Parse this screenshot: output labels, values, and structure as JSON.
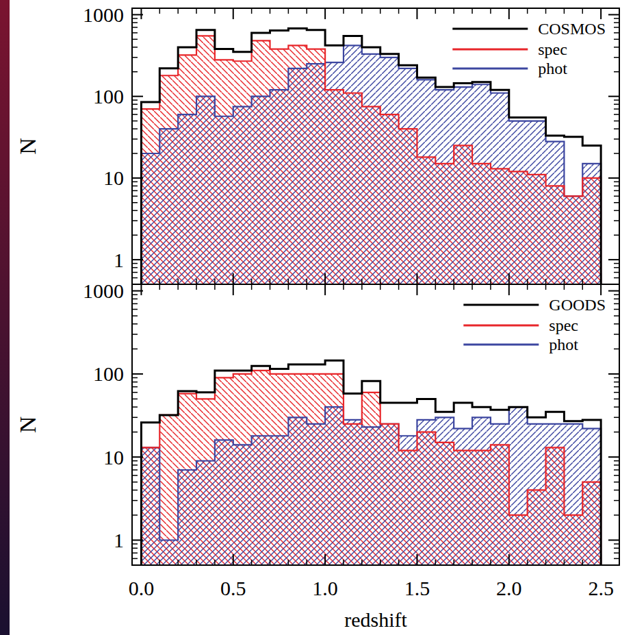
{
  "chart_data": [
    {
      "type": "histogram",
      "y_label": "N",
      "log": "y",
      "legend": "upper right",
      "tick_labels": "y",
      "bins": [
        0.0,
        0.1,
        0.2,
        0.3,
        0.4,
        0.5,
        0.6,
        0.7,
        0.8,
        0.9,
        1.0,
        1.1,
        1.2,
        1.3,
        1.4,
        1.5,
        1.6,
        1.7,
        1.8,
        1.9,
        2.0,
        2.1,
        2.2,
        2.3,
        2.4,
        2.5
      ],
      "xlim": [
        -0.05,
        2.6
      ],
      "xticks": [
        0,
        0.5,
        1,
        1.5,
        2,
        2.5
      ],
      "ylim": [
        0.5,
        1200
      ],
      "yticks": [
        1,
        10,
        100,
        1000
      ],
      "series": [
        {
          "name": "COSMOS",
          "color": "#000000",
          "values": [
            85,
            220,
            400,
            650,
            380,
            350,
            600,
            640,
            680,
            650,
            420,
            550,
            400,
            330,
            240,
            170,
            130,
            145,
            150,
            120,
            55,
            55,
            33,
            32,
            25
          ]
        },
        {
          "name": "spec",
          "color": "#e8262a",
          "values": [
            70,
            180,
            320,
            550,
            280,
            270,
            480,
            380,
            420,
            380,
            120,
            110,
            75,
            60,
            40,
            18,
            15,
            25,
            15,
            13,
            12,
            11,
            8,
            6,
            10
          ]
        },
        {
          "name": "phot",
          "color": "#3c46a0",
          "values": [
            20,
            40,
            60,
            100,
            57,
            75,
            100,
            120,
            220,
            250,
            260,
            420,
            330,
            300,
            220,
            160,
            120,
            130,
            140,
            110,
            50,
            50,
            28,
            6,
            15
          ]
        }
      ]
    },
    {
      "type": "histogram",
      "y_label": "N",
      "x_label": "redshift",
      "log": "y",
      "legend": "upper right",
      "bins": [
        0.0,
        0.1,
        0.2,
        0.3,
        0.4,
        0.5,
        0.6,
        0.7,
        0.8,
        0.9,
        1.0,
        1.1,
        1.2,
        1.3,
        1.4,
        1.5,
        1.6,
        1.7,
        1.8,
        1.9,
        2.0,
        2.1,
        2.2,
        2.3,
        2.4,
        2.5
      ],
      "xlim": [
        -0.05,
        2.6
      ],
      "xticks": [
        {
          "value": 0,
          "label": "0.0"
        },
        0.5,
        {
          "value": 1,
          "label": "1.0"
        },
        1.5,
        {
          "value": 2,
          "label": "2.0"
        },
        2.5
      ],
      "ylim": [
        0.5,
        1200
      ],
      "yticks": [
        1,
        10,
        100,
        1000
      ],
      "series": [
        {
          "name": "GOODS",
          "color": "#000000",
          "values": [
            26,
            32,
            62,
            60,
            110,
            110,
            125,
            115,
            130,
            130,
            145,
            58,
            82,
            45,
            45,
            50,
            35,
            45,
            40,
            37,
            40,
            30,
            35,
            27,
            28
          ]
        },
        {
          "name": "spec",
          "color": "#e8262a",
          "values": [
            13,
            32,
            58,
            50,
            90,
            100,
            110,
            100,
            100,
            100,
            100,
            25,
            60,
            25,
            12,
            20,
            15,
            12,
            12,
            14,
            2,
            4,
            13,
            2,
            5
          ]
        },
        {
          "name": "phot",
          "color": "#3c46a0",
          "values": [
            13,
            1,
            7,
            9,
            16,
            14,
            18,
            18,
            30,
            25,
            40,
            28,
            23,
            25,
            18,
            28,
            30,
            22,
            30,
            25,
            40,
            25,
            25,
            25,
            22
          ]
        }
      ]
    }
  ]
}
